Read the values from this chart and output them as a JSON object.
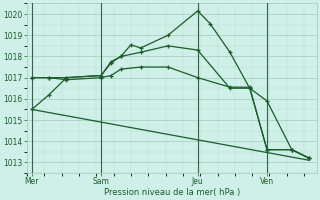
{
  "xlabel": "Pression niveau de la mer( hPa )",
  "ylim": [
    1012.5,
    1020.5
  ],
  "yticks": [
    1013,
    1014,
    1015,
    1016,
    1017,
    1018,
    1019,
    1020
  ],
  "bg_color": "#cff0e8",
  "grid_color": "#a0ccbb",
  "line_color": "#1a5c2a",
  "xtick_labels": [
    "Mer",
    "Sam",
    "Jeu",
    "Ven"
  ],
  "xtick_positions": [
    0,
    28,
    67,
    95
  ],
  "vline_positions": [
    0,
    28,
    67,
    95
  ],
  "xlim": [
    -2,
    115
  ],
  "series1_x": [
    0,
    7,
    14,
    28,
    32,
    36,
    40,
    44,
    55,
    67,
    72,
    80,
    88,
    95,
    105,
    112
  ],
  "series1_y": [
    1015.5,
    1016.2,
    1017.0,
    1017.1,
    1017.7,
    1018.0,
    1018.55,
    1018.4,
    1019.0,
    1020.15,
    1019.55,
    1018.2,
    1016.5,
    1015.9,
    1013.6,
    1013.2
  ],
  "series2_x": [
    0,
    7,
    14,
    28,
    32,
    36,
    44,
    55,
    67,
    80,
    88,
    95,
    105,
    112
  ],
  "series2_y": [
    1017.0,
    1017.0,
    1017.0,
    1017.1,
    1017.75,
    1018.0,
    1018.2,
    1018.5,
    1018.3,
    1016.5,
    1016.5,
    1013.6,
    1013.6,
    1013.2
  ],
  "series3_x": [
    0,
    7,
    14,
    28,
    32,
    36,
    44,
    55,
    67,
    80,
    88,
    95,
    105,
    112
  ],
  "series3_y": [
    1017.0,
    1017.0,
    1016.9,
    1017.0,
    1017.1,
    1017.4,
    1017.5,
    1017.5,
    1017.0,
    1016.55,
    1016.55,
    1013.6,
    1013.6,
    1013.2
  ],
  "series4_x": [
    0,
    112
  ],
  "series4_y": [
    1015.5,
    1013.1
  ]
}
